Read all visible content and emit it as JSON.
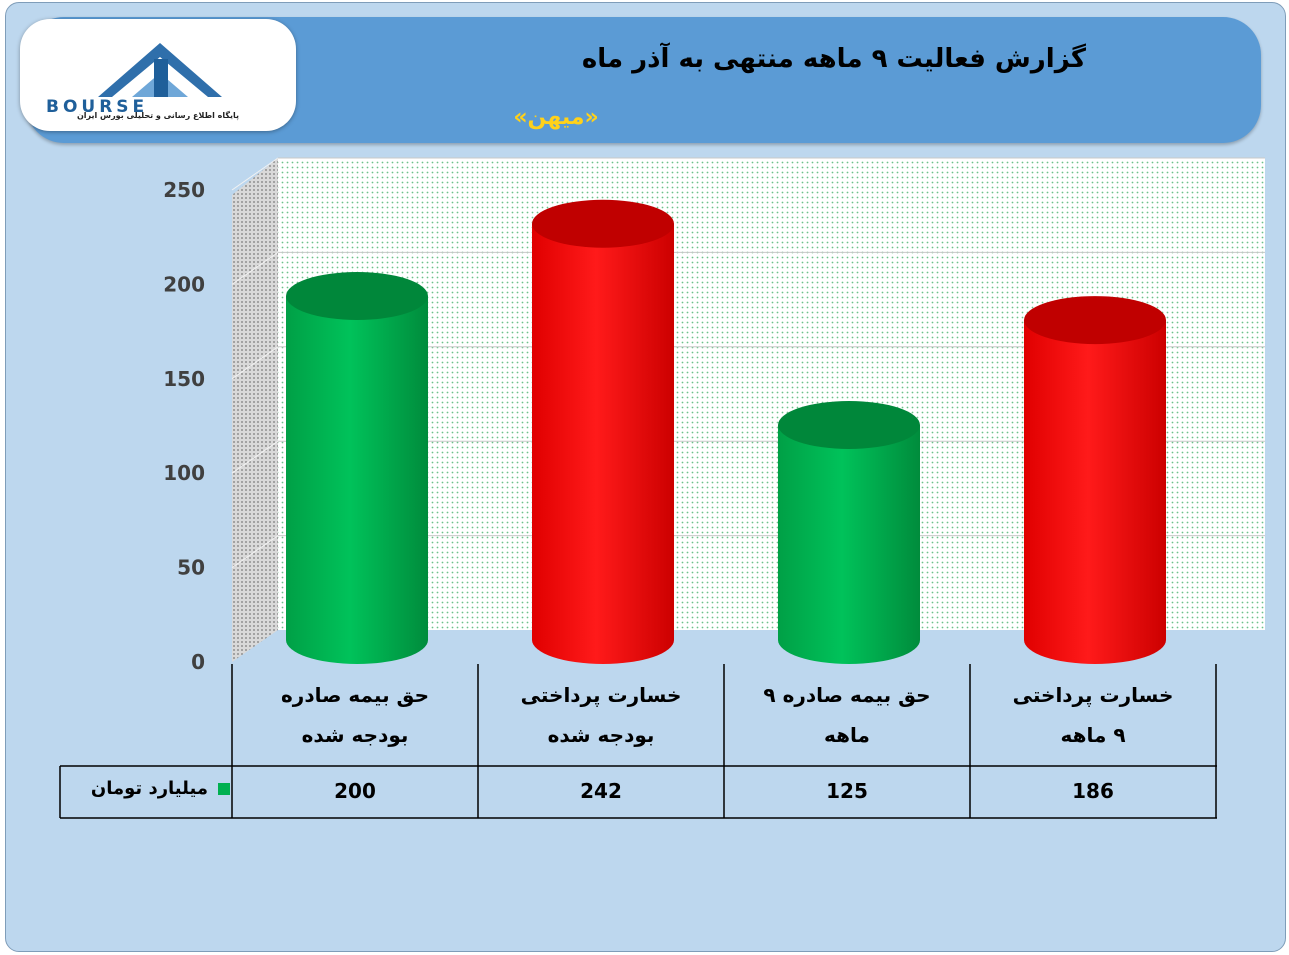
{
  "header": {
    "title": "گزارش فعالیت ۹ ماهه منتهی به آذر ماه",
    "subtitle": "«میهن»"
  },
  "logo": {
    "word": "BOURSE",
    "tagline": "پایگاه اطلاع رسانی و تحلیلی بورس ایران"
  },
  "colors": {
    "green": "#00b050",
    "red": "#ff0000",
    "header": "#5b9bd5",
    "background": "#bdd7ee",
    "title_accent": "#ffd11a"
  },
  "chart_data": {
    "type": "bar",
    "style": "3d-cylinder",
    "categories": [
      "حق بیمه صادره بودجه شده",
      "خسارت پرداختی بودجه شده",
      "حق بیمه صادره ۹ ماهه",
      "خسارت پرداختی ۹ ماهه"
    ],
    "category_lines": [
      [
        "حق بیمه صادره",
        "بودجه شده"
      ],
      [
        "خسارت پرداختی",
        "بودجه شده"
      ],
      [
        "حق بیمه صادره ۹",
        "ماهه"
      ],
      [
        "خسارت پرداختی",
        "۹ ماهه"
      ]
    ],
    "series": [
      {
        "name": "میلیارد تومان",
        "values": [
          200,
          242,
          125,
          186
        ]
      }
    ],
    "bar_colors": [
      "#00b050",
      "#ff0000",
      "#00b050",
      "#ff0000"
    ],
    "ylim": [
      0,
      250
    ],
    "yticks": [
      0,
      50,
      100,
      150,
      200,
      250
    ],
    "grid": true,
    "legend": "data-table"
  }
}
